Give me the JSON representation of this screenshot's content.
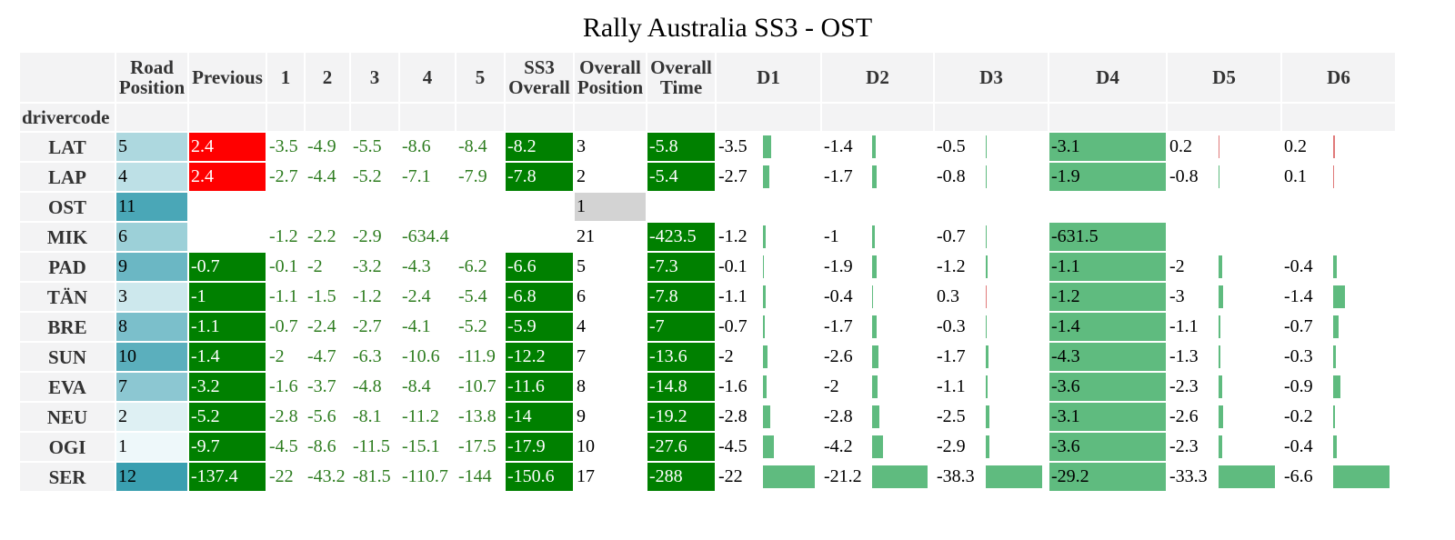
{
  "title": "Rally Australia SS3 - OST",
  "index_label": "drivercode",
  "headers": [
    "Road Position",
    "Previous",
    "1",
    "2",
    "3",
    "4",
    "5",
    "SS3 Overall",
    "Overall Position",
    "Overall Time",
    "D1",
    "D2",
    "D3",
    "D4",
    "D5",
    "D6"
  ],
  "colors": {
    "header_bg": "#f3f3f4",
    "road_light": "#eef8fa",
    "road_dark": "#3a9fb0",
    "positive_bg": "#ff0000",
    "negative_bg": "#008000",
    "rank_first_bg": "#d3d3d3",
    "bar_negative": "#5fbb7f",
    "bar_positive": "#e07a7a",
    "stage_text": "#2e7d20"
  },
  "rows": [
    {
      "driver": "LAT",
      "road": "5",
      "previous": "2.4",
      "stages": [
        "-3.5",
        "-4.9",
        "-5.5",
        "-8.6",
        "-8.4"
      ],
      "ss3": "-8.2",
      "overall_pos": "3",
      "overall_time": "-5.8",
      "d": [
        "-3.5",
        "-1.4",
        "-0.5",
        "-3.1",
        "0.2",
        "0.2"
      ]
    },
    {
      "driver": "LAP",
      "road": "4",
      "previous": "2.4",
      "stages": [
        "-2.7",
        "-4.4",
        "-5.2",
        "-7.1",
        "-7.9"
      ],
      "ss3": "-7.8",
      "overall_pos": "2",
      "overall_time": "-5.4",
      "d": [
        "-2.7",
        "-1.7",
        "-0.8",
        "-1.9",
        "-0.8",
        "0.1"
      ]
    },
    {
      "driver": "OST",
      "road": "11",
      "previous": "",
      "stages": [
        "",
        "",
        "",
        "",
        ""
      ],
      "ss3": "",
      "overall_pos": "1",
      "overall_time": "",
      "d": [
        "",
        "",
        "",
        "",
        "",
        ""
      ]
    },
    {
      "driver": "MIK",
      "road": "6",
      "previous": "",
      "stages": [
        "-1.2",
        "-2.2",
        "-2.9",
        "-634.4",
        ""
      ],
      "ss3": "",
      "overall_pos": "21",
      "overall_time": "-423.5",
      "d": [
        "-1.2",
        "-1",
        "-0.7",
        "-631.5",
        "",
        ""
      ]
    },
    {
      "driver": "PAD",
      "road": "9",
      "previous": "-0.7",
      "stages": [
        "-0.1",
        "-2",
        "-3.2",
        "-4.3",
        "-6.2"
      ],
      "ss3": "-6.6",
      "overall_pos": "5",
      "overall_time": "-7.3",
      "d": [
        "-0.1",
        "-1.9",
        "-1.2",
        "-1.1",
        "-2",
        "-0.4"
      ]
    },
    {
      "driver": "TÄN",
      "road": "3",
      "previous": "-1",
      "stages": [
        "-1.1",
        "-1.5",
        "-1.2",
        "-2.4",
        "-5.4"
      ],
      "ss3": "-6.8",
      "overall_pos": "6",
      "overall_time": "-7.8",
      "d": [
        "-1.1",
        "-0.4",
        "0.3",
        "-1.2",
        "-3",
        "-1.4"
      ]
    },
    {
      "driver": "BRE",
      "road": "8",
      "previous": "-1.1",
      "stages": [
        "-0.7",
        "-2.4",
        "-2.7",
        "-4.1",
        "-5.2"
      ],
      "ss3": "-5.9",
      "overall_pos": "4",
      "overall_time": "-7",
      "d": [
        "-0.7",
        "-1.7",
        "-0.3",
        "-1.4",
        "-1.1",
        "-0.7"
      ]
    },
    {
      "driver": "SUN",
      "road": "10",
      "previous": "-1.4",
      "stages": [
        "-2",
        "-4.7",
        "-6.3",
        "-10.6",
        "-11.9"
      ],
      "ss3": "-12.2",
      "overall_pos": "7",
      "overall_time": "-13.6",
      "d": [
        "-2",
        "-2.6",
        "-1.7",
        "-4.3",
        "-1.3",
        "-0.3"
      ]
    },
    {
      "driver": "EVA",
      "road": "7",
      "previous": "-3.2",
      "stages": [
        "-1.6",
        "-3.7",
        "-4.8",
        "-8.4",
        "-10.7"
      ],
      "ss3": "-11.6",
      "overall_pos": "8",
      "overall_time": "-14.8",
      "d": [
        "-1.6",
        "-2",
        "-1.1",
        "-3.6",
        "-2.3",
        "-0.9"
      ]
    },
    {
      "driver": "NEU",
      "road": "2",
      "previous": "-5.2",
      "stages": [
        "-2.8",
        "-5.6",
        "-8.1",
        "-11.2",
        "-13.8"
      ],
      "ss3": "-14",
      "overall_pos": "9",
      "overall_time": "-19.2",
      "d": [
        "-2.8",
        "-2.8",
        "-2.5",
        "-3.1",
        "-2.6",
        "-0.2"
      ]
    },
    {
      "driver": "OGI",
      "road": "1",
      "previous": "-9.7",
      "stages": [
        "-4.5",
        "-8.6",
        "-11.5",
        "-15.1",
        "-17.5"
      ],
      "ss3": "-17.9",
      "overall_pos": "10",
      "overall_time": "-27.6",
      "d": [
        "-4.5",
        "-4.2",
        "-2.9",
        "-3.6",
        "-2.3",
        "-0.4"
      ]
    },
    {
      "driver": "SER",
      "road": "12",
      "previous": "-137.4",
      "stages": [
        "-22",
        "-43.2",
        "-81.5",
        "-110.7",
        "-144"
      ],
      "ss3": "-150.6",
      "overall_pos": "17",
      "overall_time": "-288",
      "d": [
        "-22",
        "-21.2",
        "-38.3",
        "-29.2",
        "-33.3",
        "-6.6"
      ]
    }
  ]
}
